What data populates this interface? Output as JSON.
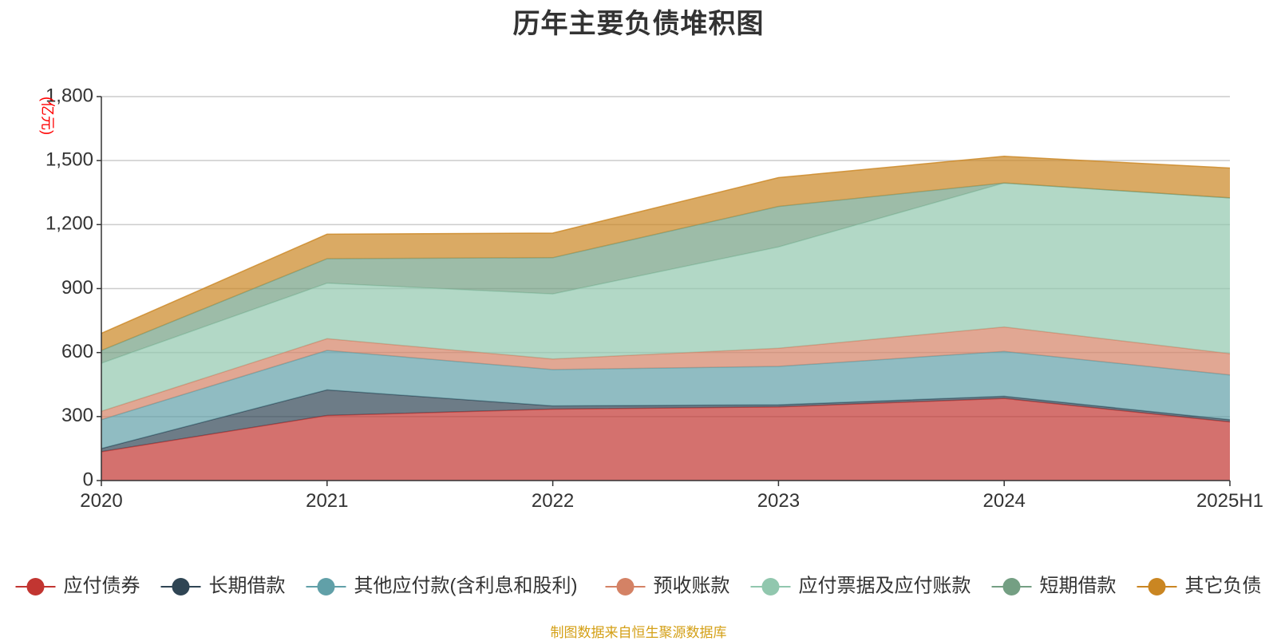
{
  "chart_data": {
    "type": "area",
    "stacked": true,
    "title": "历年主要负债堆积图",
    "unit": "(亿元)",
    "xlabel": "",
    "ylabel": "",
    "categories": [
      "2020",
      "2021",
      "2022",
      "2023",
      "2024",
      "2025H1"
    ],
    "ylim": [
      0,
      1800
    ],
    "yticks": [
      0,
      300,
      600,
      900,
      1200,
      1500,
      1800
    ],
    "ytick_labels": [
      "0",
      "300",
      "600",
      "900",
      "1,200",
      "1,500",
      "1,800"
    ],
    "grid": true,
    "legend_position": "bottom",
    "series": [
      {
        "name": "应付债券",
        "color": "#c23531",
        "values": [
          135,
          305,
          335,
          345,
          385,
          275
        ]
      },
      {
        "name": "长期借款",
        "color": "#2f4554",
        "values": [
          15,
          120,
          15,
          10,
          10,
          10
        ]
      },
      {
        "name": "其他应付款(含利息和股利)",
        "color": "#61a0a8",
        "values": [
          135,
          185,
          170,
          180,
          210,
          210
        ]
      },
      {
        "name": "预收账款",
        "color": "#d48265",
        "values": [
          40,
          55,
          50,
          85,
          115,
          100
        ]
      },
      {
        "name": "应付票据及应付账款",
        "color": "#91c7ae",
        "values": [
          225,
          260,
          305,
          475,
          675,
          730
        ]
      },
      {
        "name": "短期借款",
        "color": "#749f83",
        "values": [
          60,
          115,
          170,
          190,
          0,
          0
        ]
      },
      {
        "name": "其它负债",
        "color": "#ca8622",
        "values": [
          80,
          115,
          115,
          135,
          125,
          140
        ]
      }
    ]
  },
  "source_note": "制图数据来自恒生聚源数据库"
}
